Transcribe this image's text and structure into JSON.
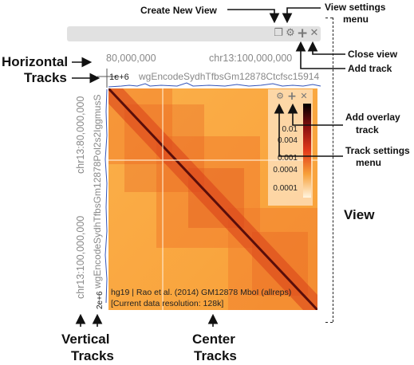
{
  "annotations": {
    "create_new_view": "Create New View",
    "view_settings_menu_line1": "View settings",
    "view_settings_menu_line2": "menu",
    "close_view": "Close view",
    "add_track": "Add track",
    "add_overlay_track_line1": "Add overlay",
    "add_overlay_track_line2": "track",
    "track_settings_menu_line1": "Track settings",
    "track_settings_menu_line2": "menu",
    "view": "View",
    "horizontal_tracks_line1": "Horizontal",
    "horizontal_tracks_line2": "Tracks",
    "vertical_tracks_line1": "Vertical",
    "vertical_tracks_line2": "Tracks",
    "center_tracks_line1": "Center",
    "center_tracks_line2": "Tracks"
  },
  "view_header": {
    "icons": [
      "copy-icon",
      "gear-icon",
      "plus-icon",
      "close-icon"
    ],
    "icon_glyphs": [
      "❐",
      "⚙",
      "+",
      "✕"
    ]
  },
  "horizontal_track": {
    "coord_left": "80,000,000",
    "coord_right": "chr13:100,000,000",
    "value_label": "1e+6",
    "track_name": "wgEncodeSydhTfbsGm12878Ctcfsc15914"
  },
  "vertical_track": {
    "coord_top": "chr13:80,000,000",
    "coord_bottom": "chr13:100,000,000",
    "track_name": "wgEncodeSydhTfbsGm12878Pol2s2IggmusS",
    "value_label": "2e+6"
  },
  "center_track": {
    "dataset_label": "hg19 | Rao et al. (2014) GM12878 MboI (allreps)",
    "resolution_label": "[Current data resolution: 128k]",
    "colorbar_ticks": [
      "0.01",
      "0.004",
      "0.001",
      "0.0004",
      "0.0001"
    ],
    "colorbar_icons": [
      "gear-icon",
      "plus-icon",
      "close-icon"
    ],
    "colorbar_glyphs": [
      "⚙",
      "+",
      "✕"
    ]
  }
}
